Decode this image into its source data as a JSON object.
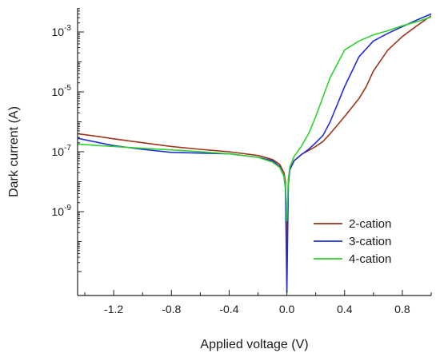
{
  "chart_data": {
    "type": "line",
    "title": "",
    "xlabel": "Applied voltage (V)",
    "ylabel": "Dark current (A)",
    "xlim": [
      -1.45,
      1.0
    ],
    "ylim_log10": [
      -11.8,
      -2.2
    ],
    "yscale": "log",
    "x_ticks": [
      {
        "value": -1.2,
        "label": "-1.2"
      },
      {
        "value": -0.8,
        "label": "-0.8"
      },
      {
        "value": -0.4,
        "label": "-0.4"
      },
      {
        "value": 0.0,
        "label": "0.0"
      },
      {
        "value": 0.4,
        "label": "0.4"
      },
      {
        "value": 0.8,
        "label": "0.8"
      }
    ],
    "y_ticks": [
      {
        "exp": -3,
        "base": "10",
        "sup": "-3"
      },
      {
        "exp": -5,
        "base": "10",
        "sup": "-5"
      },
      {
        "exp": -7,
        "base": "10",
        "sup": "-7"
      },
      {
        "exp": -9,
        "base": "10",
        "sup": "-9"
      }
    ],
    "legend_position": "lower-right",
    "grid": false,
    "series": [
      {
        "name": "2-cation",
        "color": "#a0331c",
        "x": [
          -1.45,
          -1.3,
          -1.2,
          -1.0,
          -0.8,
          -0.6,
          -0.4,
          -0.2,
          -0.1,
          -0.05,
          -0.02,
          -0.01,
          0.0,
          0.01,
          0.02,
          0.05,
          0.1,
          0.15,
          0.2,
          0.25,
          0.3,
          0.4,
          0.5,
          0.55,
          0.6,
          0.7,
          0.8,
          0.9,
          1.0
        ],
        "y": [
          4e-07,
          3.2e-07,
          2.7e-07,
          2e-07,
          1.5e-07,
          1.2e-07,
          1e-07,
          7.5e-08,
          5.5e-08,
          3.8e-08,
          2e-08,
          1e-08,
          3e-11,
          1e-08,
          2.5e-08,
          5e-08,
          8e-08,
          1.1e-07,
          1.5e-07,
          2.2e-07,
          4e-07,
          1.5e-06,
          6e-06,
          1.5e-05,
          5e-05,
          0.00025,
          0.0007,
          0.0016,
          0.0035
        ]
      },
      {
        "name": "3-cation",
        "color": "#1f2fd6",
        "x": [
          -1.45,
          -1.3,
          -1.2,
          -1.0,
          -0.8,
          -0.6,
          -0.4,
          -0.2,
          -0.1,
          -0.05,
          -0.02,
          -0.01,
          0.0,
          0.01,
          0.02,
          0.05,
          0.1,
          0.15,
          0.2,
          0.25,
          0.3,
          0.4,
          0.5,
          0.6,
          0.7,
          0.8,
          0.9,
          1.0
        ],
        "y": [
          2.8e-07,
          2e-07,
          1.6e-07,
          1.2e-07,
          9.5e-08,
          9e-08,
          8.5e-08,
          6.5e-08,
          5e-08,
          3.2e-08,
          1.5e-08,
          6e-09,
          2e-12,
          8e-09,
          2.5e-08,
          5e-08,
          8e-08,
          1.2e-07,
          2e-07,
          3.5e-07,
          1e-06,
          1.5e-05,
          0.00015,
          0.0005,
          0.0009,
          0.0015,
          0.0025,
          0.004
        ]
      },
      {
        "name": "4-cation",
        "color": "#2fd12f",
        "x": [
          -1.45,
          -1.3,
          -1.2,
          -1.0,
          -0.8,
          -0.6,
          -0.4,
          -0.2,
          -0.1,
          -0.05,
          -0.02,
          -0.01,
          0.0,
          0.01,
          0.02,
          0.05,
          0.1,
          0.15,
          0.2,
          0.3,
          0.4,
          0.5,
          0.6,
          0.7,
          0.8,
          0.9,
          1.0
        ],
        "y": [
          1.8e-07,
          1.6e-07,
          1.5e-07,
          1.3e-07,
          1.15e-07,
          1e-07,
          8.5e-08,
          6.5e-08,
          4.5e-08,
          3e-08,
          1.5e-08,
          7e-09,
          5e-10,
          1.2e-08,
          3e-08,
          7e-08,
          1.5e-07,
          4e-07,
          1.5e-06,
          3e-05,
          0.00025,
          0.0005,
          0.0008,
          0.0011,
          0.0016,
          0.0022,
          0.0032
        ]
      }
    ]
  }
}
